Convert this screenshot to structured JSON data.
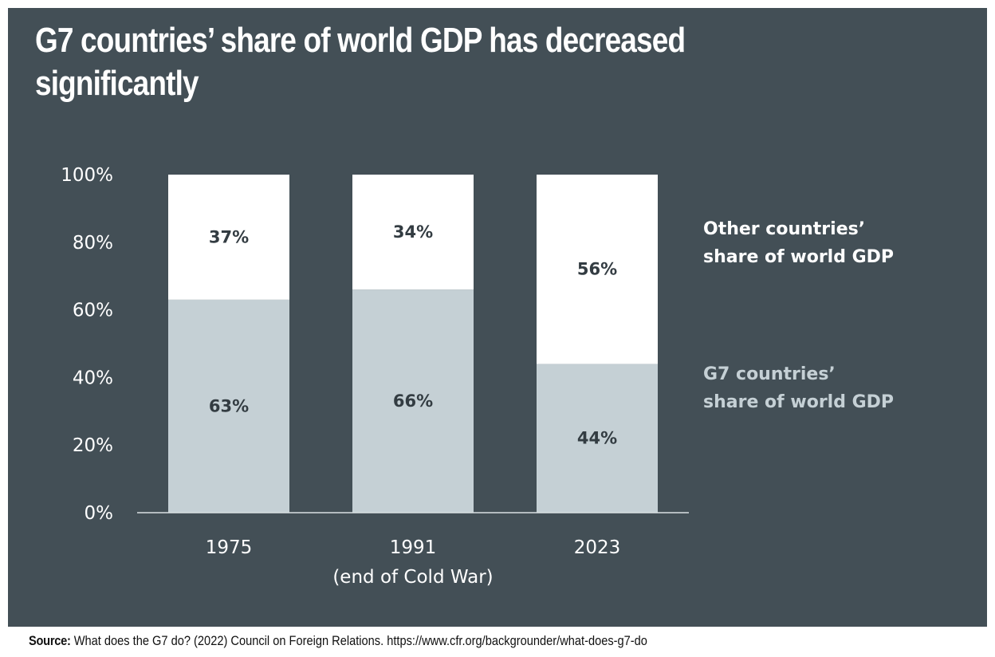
{
  "title": "G7 countries’ share of world GDP has decreased significantly",
  "source": {
    "label": "Source:",
    "text": "What does the G7 do? (2022) Council on Foreign Relations. https://www.cfr.org/backgrounder/what-does-g7-do"
  },
  "legend": {
    "other": "Other countries’ share of world GDP",
    "g7": "G7 countries’ share of world GDP"
  },
  "colors": {
    "background": "#434f56",
    "g7": "#c5d0d5",
    "other": "#ffffff",
    "axis": "#d9dfe2"
  },
  "chart_data": {
    "type": "bar",
    "stacked": true,
    "categories": [
      "1975",
      "1991\n(end of Cold War)",
      "2023"
    ],
    "series": [
      {
        "name": "G7 countries’ share of world GDP",
        "values": [
          63,
          66,
          44
        ],
        "labels": [
          "63%",
          "66%",
          "44%"
        ]
      },
      {
        "name": "Other countries’ share of world GDP",
        "values": [
          37,
          34,
          56
        ],
        "labels": [
          "37%",
          "34%",
          "56%"
        ]
      }
    ],
    "ylim": [
      0,
      100
    ],
    "yticks": [
      "0%",
      "20%",
      "40%",
      "60%",
      "80%",
      "100%"
    ],
    "legend_position": "right",
    "grid": false
  }
}
